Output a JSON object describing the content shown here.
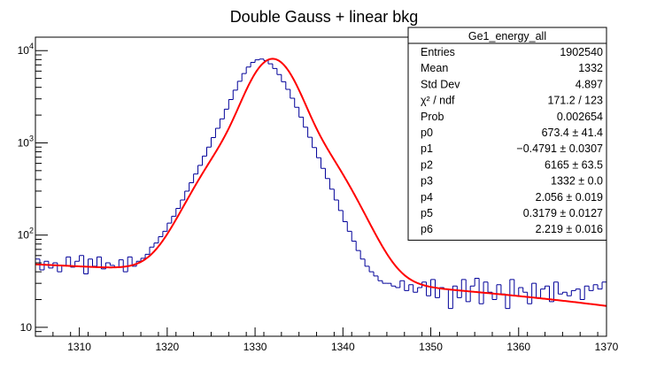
{
  "chart_data": {
    "type": "histogram_with_fit",
    "title": "Double Gauss + linear bkg",
    "xlabel": "",
    "ylabel": "",
    "xlim": [
      1305,
      1370
    ],
    "ylim": [
      8,
      14000
    ],
    "yscale": "log",
    "x_ticks": [
      1310,
      1320,
      1330,
      1340,
      1350,
      1360,
      1370
    ],
    "y_ticks": [
      {
        "value": 10,
        "base": "10",
        "exp": ""
      },
      {
        "value": 100,
        "base": "10",
        "exp": "2"
      },
      {
        "value": 1000,
        "base": "10",
        "exp": "3"
      },
      {
        "value": 10000,
        "base": "10",
        "exp": "4"
      }
    ],
    "histogram": {
      "name": "Ge1_energy_all",
      "color": "#000099",
      "bin_width": 0.5,
      "x": [
        1305,
        1305.5,
        1306,
        1306.5,
        1307,
        1307.5,
        1308,
        1308.5,
        1309,
        1309.5,
        1310,
        1310.5,
        1311,
        1311.5,
        1312,
        1312.5,
        1313,
        1313.5,
        1314,
        1314.5,
        1315,
        1315.5,
        1316,
        1316.5,
        1317,
        1317.5,
        1318,
        1318.5,
        1319,
        1319.5,
        1320,
        1320.5,
        1321,
        1321.5,
        1322,
        1322.5,
        1323,
        1323.5,
        1324,
        1324.5,
        1325,
        1325.5,
        1326,
        1326.5,
        1327,
        1327.5,
        1328,
        1328.5,
        1329,
        1329.5,
        1330,
        1330.5,
        1331,
        1331.5,
        1332,
        1332.5,
        1333,
        1333.5,
        1334,
        1334.5,
        1335,
        1335.5,
        1336,
        1336.5,
        1337,
        1337.5,
        1338,
        1338.5,
        1339,
        1339.5,
        1340,
        1340.5,
        1341,
        1341.5,
        1342,
        1342.5,
        1343,
        1343.5,
        1344,
        1344.5,
        1345,
        1345.5,
        1346,
        1346.5,
        1347,
        1347.5,
        1348,
        1348.5,
        1349,
        1349.5,
        1350,
        1350.5,
        1351,
        1351.5,
        1352,
        1352.5,
        1353,
        1353.5,
        1354,
        1354.5,
        1355,
        1355.5,
        1356,
        1356.5,
        1357,
        1357.5,
        1358,
        1358.5,
        1359,
        1359.5,
        1360,
        1360.5,
        1361,
        1361.5,
        1362,
        1362.5,
        1363,
        1363.5,
        1364,
        1364.5,
        1365,
        1365.5,
        1366,
        1366.5,
        1367,
        1367.5,
        1368,
        1368.5,
        1369,
        1369.5
      ],
      "y": [
        55,
        42,
        52,
        44,
        50,
        40,
        47,
        58,
        45,
        52,
        60,
        38,
        55,
        46,
        58,
        43,
        50,
        47,
        45,
        54,
        40,
        58,
        46,
        52,
        56,
        62,
        74,
        82,
        96,
        110,
        135,
        160,
        195,
        240,
        300,
        370,
        460,
        570,
        720,
        900,
        1140,
        1440,
        1820,
        2320,
        2950,
        3730,
        4650,
        5650,
        6650,
        7450,
        7950,
        8100,
        7800,
        7200,
        6400,
        5500,
        4600,
        3800,
        3050,
        2430,
        1900,
        1480,
        1150,
        890,
        690,
        530,
        410,
        315,
        240,
        185,
        140,
        110,
        86,
        68,
        55,
        46,
        40,
        36,
        32,
        30,
        30,
        28,
        27,
        32,
        25,
        29,
        24,
        27,
        31,
        22,
        33,
        21,
        27,
        26,
        16,
        28,
        21,
        33,
        19,
        28,
        34,
        18,
        31,
        24,
        20,
        29,
        23,
        16,
        33,
        22,
        27,
        24,
        18,
        30,
        21,
        26,
        28,
        19,
        31,
        23,
        24,
        22,
        25,
        26,
        20,
        28,
        25,
        29,
        26,
        31
      ]
    },
    "fit": {
      "color": "#ff0000",
      "type": "double gaussian + linear background",
      "params": {
        "p0": 673.4,
        "p1": -0.4791,
        "p2": 6165,
        "p3": 1332,
        "p4": 2.056,
        "p5": 0.3179,
        "p6": 2.219
      }
    },
    "stats_box": {
      "title": "Ge1_energy_all",
      "rows": [
        {
          "label": "Entries",
          "value": "1902540"
        },
        {
          "label": "Mean",
          "value": "1332"
        },
        {
          "label": "Std Dev",
          "value": "4.897"
        },
        {
          "label": "χ² / ndf",
          "value": "171.2 / 123"
        },
        {
          "label": "Prob",
          "value": "0.002654"
        },
        {
          "label": "p0",
          "value": "673.4 ± 41.4"
        },
        {
          "label": "p1",
          "value": "−0.4791 ± 0.0307"
        },
        {
          "label": "p2",
          "value": "6165 ± 63.5"
        },
        {
          "label": "p3",
          "value": "1332 ± 0.0"
        },
        {
          "label": "p4",
          "value": "2.056 ± 0.019"
        },
        {
          "label": "p5",
          "value": "0.3179 ± 0.0127"
        },
        {
          "label": "p6",
          "value": "2.219 ± 0.016"
        }
      ]
    }
  }
}
